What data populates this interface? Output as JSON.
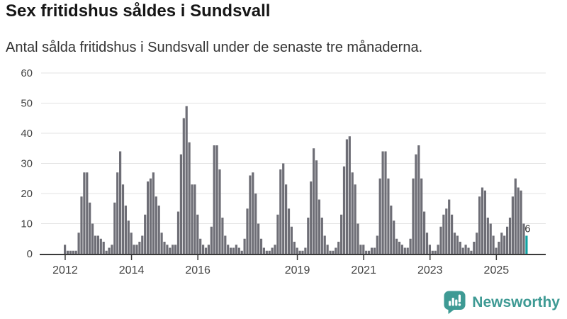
{
  "header": {
    "title": "Sex fritidshus såldes i Sundsvall",
    "subtitle": "Antal sålda fritidshus i Sundsvall under de senaste tre månaderna."
  },
  "chart_data": {
    "type": "bar",
    "title": "Sex fritidshus såldes i Sundsvall",
    "subtitle": "Antal sålda fritidshus i Sundsvall under de senaste tre månaderna.",
    "xlabel": "",
    "ylabel": "",
    "frequency": "monthly",
    "x_start": "2012-01",
    "values": [
      3,
      1,
      1,
      1,
      1,
      7,
      19,
      27,
      27,
      17,
      10,
      6,
      6,
      5,
      4,
      1,
      2,
      3,
      17,
      27,
      34,
      23,
      16,
      11,
      7,
      3,
      3,
      4,
      6,
      13,
      24,
      25,
      27,
      19,
      16,
      7,
      4,
      3,
      2,
      3,
      3,
      14,
      33,
      45,
      49,
      37,
      23,
      23,
      13,
      5,
      3,
      2,
      3,
      9,
      36,
      36,
      28,
      12,
      6,
      3,
      2,
      2,
      3,
      2,
      1,
      5,
      15,
      26,
      27,
      20,
      10,
      5,
      2,
      1,
      1,
      2,
      3,
      13,
      28,
      30,
      23,
      15,
      9,
      4,
      2,
      1,
      1,
      2,
      12,
      24,
      35,
      31,
      18,
      12,
      6,
      3,
      1,
      1,
      2,
      4,
      13,
      29,
      38,
      39,
      27,
      23,
      10,
      3,
      3,
      1,
      1,
      2,
      2,
      6,
      25,
      34,
      34,
      25,
      16,
      11,
      5,
      4,
      3,
      2,
      2,
      5,
      25,
      33,
      36,
      25,
      14,
      7,
      3,
      1,
      1,
      3,
      9,
      13,
      15,
      18,
      13,
      7,
      6,
      4,
      2,
      3,
      2,
      1,
      4,
      7,
      19,
      22,
      21,
      12,
      10,
      6,
      2,
      4,
      7,
      6,
      9,
      12,
      19,
      25,
      22,
      21,
      10,
      6
    ],
    "highlight": {
      "index_from_end": 1,
      "value": 6,
      "label": "6",
      "color": "#0fa0a0"
    },
    "bar_color": "#6e6e76",
    "ylim": [
      0,
      60
    ],
    "yticks": [
      0,
      10,
      20,
      30,
      40,
      50,
      60
    ],
    "xticks": [
      {
        "label": "2012",
        "year": 2012
      },
      {
        "label": "2014",
        "year": 2014
      },
      {
        "label": "2016",
        "year": 2016
      },
      {
        "label": "2019",
        "year": 2019
      },
      {
        "label": "2021",
        "year": 2021
      },
      {
        "label": "2023",
        "year": 2023
      },
      {
        "label": "2025",
        "year": 2025
      }
    ],
    "grid": "horizontal",
    "legend": "none",
    "grid_color": "#e3e3e3",
    "axis_color": "#3a3a3a",
    "tick_label_color": "#444444"
  },
  "footer": {
    "brand": "Newsworthy",
    "logo_color": "#3e9a94"
  }
}
